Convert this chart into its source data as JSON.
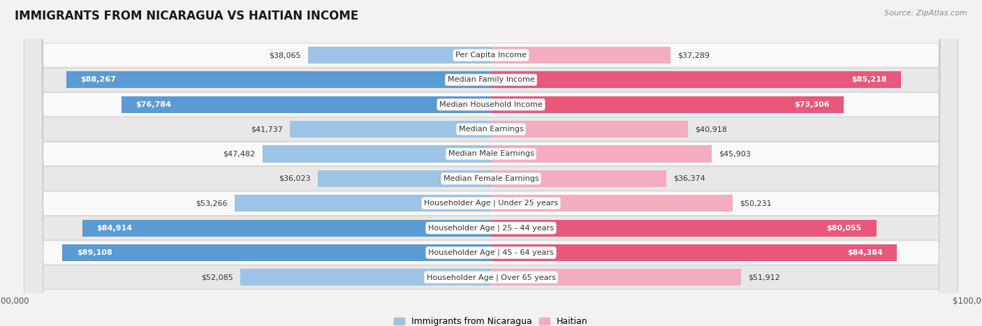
{
  "title": "IMMIGRANTS FROM NICARAGUA VS HAITIAN INCOME",
  "source": "Source: ZipAtlas.com",
  "categories": [
    "Per Capita Income",
    "Median Family Income",
    "Median Household Income",
    "Median Earnings",
    "Median Male Earnings",
    "Median Female Earnings",
    "Householder Age | Under 25 years",
    "Householder Age | 25 - 44 years",
    "Householder Age | 45 - 64 years",
    "Householder Age | Over 65 years"
  ],
  "nicaragua_values": [
    38065,
    88267,
    76784,
    41737,
    47482,
    36023,
    53266,
    84914,
    89108,
    52085
  ],
  "haitian_values": [
    37289,
    85218,
    73306,
    40918,
    45903,
    36374,
    50231,
    80055,
    84384,
    51912
  ],
  "nicaragua_labels": [
    "$38,065",
    "$88,267",
    "$76,784",
    "$41,737",
    "$47,482",
    "$36,023",
    "$53,266",
    "$84,914",
    "$89,108",
    "$52,085"
  ],
  "haitian_labels": [
    "$37,289",
    "$85,218",
    "$73,306",
    "$40,918",
    "$45,903",
    "$36,374",
    "$50,231",
    "$80,055",
    "$84,384",
    "$51,912"
  ],
  "nicaragua_color_large": "#5b9bd5",
  "nicaragua_color_small": "#9dc3e6",
  "haitian_color_large": "#e9577a",
  "haitian_color_small": "#f4acbf",
  "large_threshold": 60000,
  "max_value": 100000,
  "background_color": "#f2f2f2",
  "row_bg_light": "#f9f9f9",
  "row_bg_dark": "#e8e8e8",
  "title_fontsize": 12,
  "label_fontsize": 8,
  "category_fontsize": 8,
  "legend_fontsize": 9,
  "source_fontsize": 8
}
